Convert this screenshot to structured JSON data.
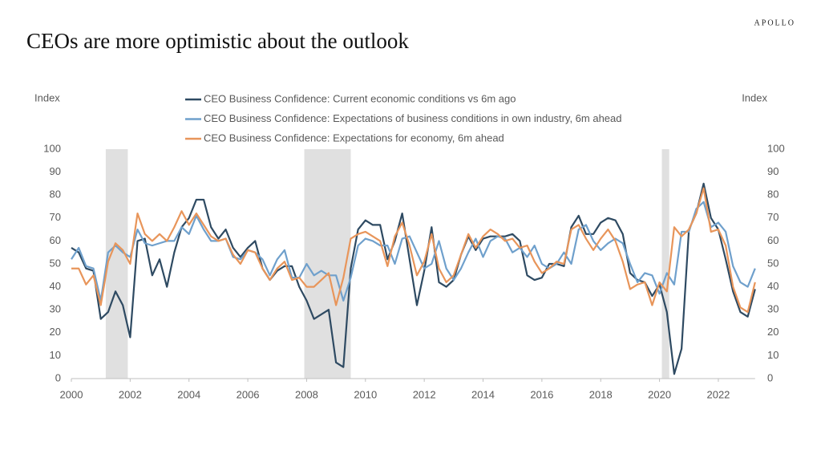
{
  "brand": "APOLLO",
  "chart_data": {
    "type": "line",
    "title": "CEOs are more optimistic about the outlook",
    "y_label": "Index",
    "y2_label": "Index",
    "x": [
      2000,
      2000.25,
      2000.5,
      2000.75,
      2001,
      2001.25,
      2001.5,
      2001.75,
      2002,
      2002.25,
      2002.5,
      2002.75,
      2003,
      2003.25,
      2003.5,
      2003.75,
      2004,
      2004.25,
      2004.5,
      2004.75,
      2005,
      2005.25,
      2005.5,
      2005.75,
      2006,
      2006.25,
      2006.5,
      2006.75,
      2007,
      2007.25,
      2007.5,
      2007.75,
      2008,
      2008.25,
      2008.5,
      2008.75,
      2009,
      2009.25,
      2009.5,
      2009.75,
      2010,
      2010.25,
      2010.5,
      2010.75,
      2011,
      2011.25,
      2011.5,
      2011.75,
      2012,
      2012.25,
      2012.5,
      2012.75,
      2013,
      2013.25,
      2013.5,
      2013.75,
      2014,
      2014.25,
      2014.5,
      2014.75,
      2015,
      2015.25,
      2015.5,
      2015.75,
      2016,
      2016.25,
      2016.5,
      2016.75,
      2017,
      2017.25,
      2017.5,
      2017.75,
      2018,
      2018.25,
      2018.5,
      2018.75,
      2019,
      2019.25,
      2019.5,
      2019.75,
      2020,
      2020.25,
      2020.5,
      2020.75,
      2021,
      2021.25,
      2021.5,
      2021.75,
      2022,
      2022.25,
      2022.5,
      2022.75,
      2023,
      2023.25
    ],
    "series": [
      {
        "name": "CEO Business Confidence: Current economic conditions vs 6m ago",
        "color": "#2e4a62",
        "values": [
          57,
          55,
          48,
          47,
          26,
          29,
          38,
          32,
          18,
          60,
          61,
          45,
          52,
          40,
          55,
          66,
          70,
          78,
          78,
          66,
          61,
          65,
          57,
          53,
          57,
          60,
          48,
          43,
          47,
          49,
          49,
          40,
          34,
          26,
          28,
          30,
          7,
          5,
          48,
          65,
          69,
          67,
          67,
          52,
          60,
          72,
          52,
          32,
          47,
          66,
          42,
          40,
          43,
          54,
          62,
          56,
          61,
          62,
          62,
          62,
          63,
          60,
          45,
          43,
          44,
          50,
          50,
          49,
          66,
          71,
          63,
          63,
          68,
          70,
          69,
          63,
          46,
          43,
          42,
          36,
          41,
          29,
          2,
          13,
          65,
          72,
          85,
          70,
          65,
          52,
          38,
          29,
          27,
          39
        ]
      },
      {
        "name": "CEO Business Confidence: Expectations of business conditions in own industry, 6m ahead",
        "color": "#6fa0cc",
        "values": [
          52,
          57,
          49,
          48,
          34,
          55,
          58,
          55,
          53,
          65,
          59,
          58,
          59,
          60,
          60,
          66,
          63,
          71,
          65,
          60,
          60,
          61,
          53,
          52,
          56,
          55,
          52,
          45,
          52,
          56,
          44,
          44,
          50,
          45,
          47,
          45,
          45,
          34,
          44,
          58,
          61,
          60,
          58,
          58,
          50,
          61,
          62,
          55,
          48,
          50,
          60,
          48,
          43,
          48,
          55,
          61,
          53,
          60,
          62,
          61,
          55,
          57,
          53,
          58,
          50,
          48,
          50,
          55,
          50,
          65,
          67,
          60,
          56,
          59,
          61,
          59,
          50,
          42,
          46,
          45,
          37,
          46,
          41,
          64,
          64,
          74,
          77,
          66,
          68,
          64,
          49,
          42,
          40,
          48
        ]
      },
      {
        "name": "CEO Business Confidence: Expectations for economy, 6m ahead",
        "color": "#e8955a",
        "values": [
          48,
          48,
          41,
          45,
          32,
          51,
          59,
          56,
          50,
          72,
          63,
          60,
          63,
          60,
          66,
          73,
          67,
          72,
          67,
          62,
          60,
          61,
          54,
          50,
          56,
          55,
          48,
          43,
          48,
          51,
          43,
          44,
          40,
          40,
          43,
          46,
          32,
          44,
          61,
          63,
          64,
          62,
          60,
          49,
          62,
          68,
          58,
          45,
          51,
          63,
          48,
          42,
          45,
          54,
          63,
          57,
          62,
          65,
          63,
          60,
          61,
          57,
          58,
          51,
          46,
          48,
          51,
          50,
          65,
          67,
          61,
          56,
          61,
          65,
          60,
          51,
          39,
          41,
          42,
          32,
          42,
          38,
          66,
          62,
          65,
          72,
          83,
          64,
          65,
          58,
          40,
          31,
          29,
          42
        ]
      }
    ],
    "recessions": [
      [
        2001.17,
        2001.92
      ],
      [
        2007.92,
        2009.5
      ],
      [
        2020.08,
        2020.33
      ]
    ],
    "recession_color": "#e0e0e0",
    "xlim": [
      2000,
      2023.25
    ],
    "xticks": [
      2000,
      2002,
      2004,
      2006,
      2008,
      2010,
      2012,
      2014,
      2016,
      2018,
      2020,
      2022
    ],
    "ylim": [
      0,
      100
    ],
    "yticks": [
      0,
      10,
      20,
      30,
      40,
      50,
      60,
      70,
      80,
      90,
      100
    ],
    "y2lim": [
      0,
      100
    ],
    "y2ticks": [
      0,
      10,
      20,
      30,
      40,
      50,
      60,
      70,
      80,
      90,
      100
    ],
    "grid": false,
    "legend": "top"
  }
}
